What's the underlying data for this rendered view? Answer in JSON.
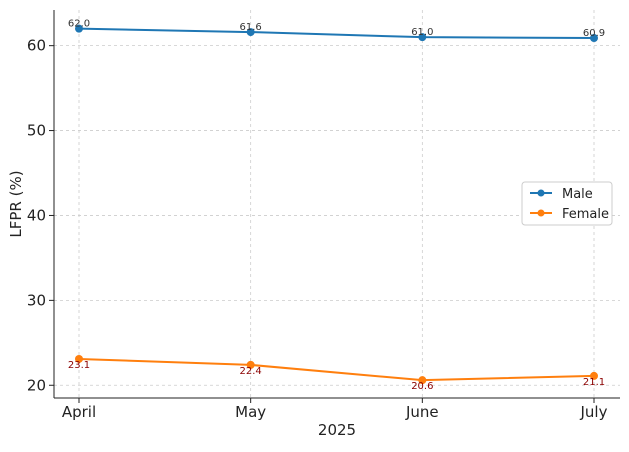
{
  "chart_data": {
    "type": "line",
    "categories": [
      "April",
      "May",
      "June",
      "July"
    ],
    "xlabel": "2025",
    "ylabel": "LFPR (%)",
    "ylim": [
      18.5,
      64.2
    ],
    "yticks": [
      20,
      30,
      40,
      50,
      60
    ],
    "grid": true,
    "grid_style": "dashed",
    "legend_position": "center-right",
    "series": [
      {
        "name": "Male",
        "values": [
          62.0,
          61.6,
          61.0,
          60.9
        ],
        "labels": [
          "62.0",
          "61.6",
          "61.0",
          "60.9"
        ],
        "color": "#1f77b4",
        "label_color": "#333333"
      },
      {
        "name": "Female",
        "values": [
          23.1,
          22.4,
          20.6,
          21.1
        ],
        "labels": [
          "23.1",
          "22.4",
          "20.6",
          "21.1"
        ],
        "color": "#ff7f0e",
        "label_color": "#8b0000"
      }
    ]
  }
}
